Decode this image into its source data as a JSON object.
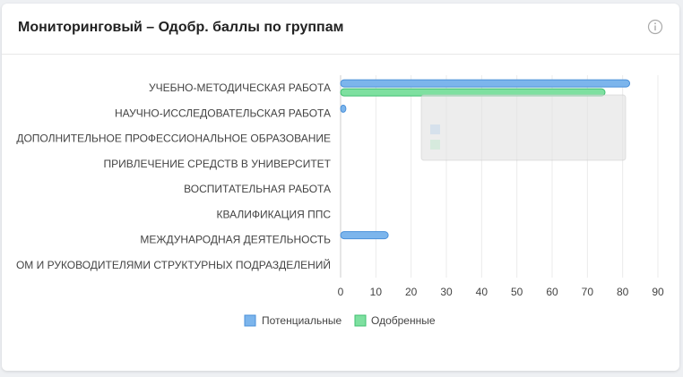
{
  "header": {
    "title": "Мониторинговый – Одобр. баллы по группам",
    "info_icon": "info-icon"
  },
  "chart_data": {
    "type": "bar",
    "orientation": "horizontal",
    "categories": [
      "УЧЕБНО-МЕТОДИЧЕСКАЯ РАБОТА",
      "НАУЧНО-ИССЛЕДОВАТЕЛЬСКАЯ РАБОТА",
      "ДОПОЛНИТЕЛЬНОЕ ПРОФЕССИОНАЛЬНОЕ ОБРАЗОВАНИЕ",
      "ПРИВЛЕЧЕНИЕ СРЕДСТВ В УНИВЕРСИТЕТ",
      "ВОСПИТАТЕЛЬНАЯ РАБОТА",
      "КВАЛИФИКАЦИЯ ППС",
      "МЕЖДУНАРОДНАЯ ДЕЯТЕЛЬНОСТЬ",
      "ОМ И РУКОВОДИТЕЛЯМИ СТРУКТУРНЫХ ПОДРАЗДЕЛЕНИЙ"
    ],
    "series": [
      {
        "name": "Потенциальные",
        "values": [
          82,
          1.5,
          0,
          0,
          0,
          0,
          13.5,
          0
        ],
        "color": "#7cb5ec",
        "border": "#4a90d9"
      },
      {
        "name": "Одобренные",
        "values": [
          75,
          0,
          0,
          0,
          0,
          0,
          0,
          0
        ],
        "color": "#7ee0a0",
        "border": "#3fbf6f"
      }
    ],
    "xticks": [
      "0",
      "10",
      "20",
      "30",
      "40",
      "50",
      "60",
      "70",
      "80",
      "90"
    ],
    "xlim": [
      0,
      90
    ],
    "grid": true,
    "legend_position": "bottom-center",
    "tooltip_visible": true
  }
}
